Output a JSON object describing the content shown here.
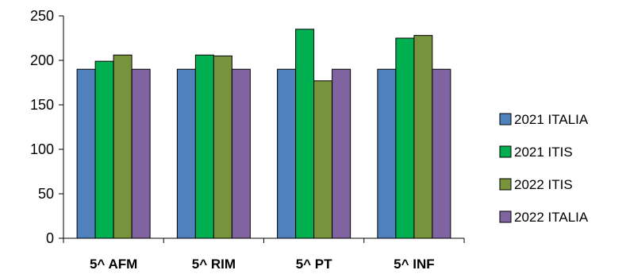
{
  "chart_data": {
    "type": "bar",
    "title": "",
    "xlabel": "",
    "ylabel": "",
    "categories": [
      "5^ AFM",
      "5^ RIM",
      "5^ PT",
      "5^ INF"
    ],
    "series": [
      {
        "name": "2021 ITALIA",
        "color": "#4f81bd",
        "values": [
          190,
          190,
          190,
          190
        ]
      },
      {
        "name": "2021 ITIS",
        "color": "#00b050",
        "values": [
          199,
          206,
          235,
          225
        ]
      },
      {
        "name": "2022 ITIS",
        "color": "#77933c",
        "values": [
          206,
          205,
          177,
          228
        ]
      },
      {
        "name": "2022 ITALIA",
        "color": "#8064a2",
        "values": [
          190,
          190,
          190,
          190
        ]
      }
    ],
    "ylim": [
      0,
      250
    ],
    "yticks": [
      0,
      50,
      100,
      150,
      200,
      250
    ],
    "grid": false,
    "legend_position": "right"
  }
}
